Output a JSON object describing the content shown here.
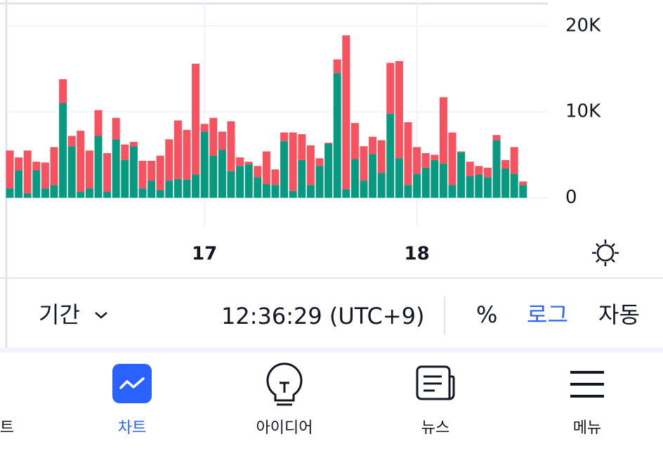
{
  "chart_data": {
    "type": "bar",
    "stacked": true,
    "categories": [
      null,
      null,
      null,
      null,
      null,
      null,
      null,
      null,
      null,
      null,
      null,
      null,
      null,
      null,
      null,
      null,
      null,
      null,
      null,
      null,
      null,
      null,
      "17",
      null,
      null,
      null,
      null,
      null,
      null,
      null,
      null,
      null,
      null,
      null,
      null,
      null,
      null,
      null,
      null,
      null,
      null,
      null,
      null,
      null,
      null,
      null,
      "18",
      null,
      null,
      null,
      null,
      null,
      null,
      null,
      null,
      null,
      null,
      null,
      null
    ],
    "series": [
      {
        "color": "#089981",
        "values": [
          1100,
          3200,
          500,
          3200,
          1100,
          1500,
          11000,
          6000,
          700,
          1100,
          7200,
          700,
          6800,
          4400,
          6000,
          1100,
          2000,
          900,
          2000,
          2200,
          2100,
          2700,
          7700,
          4900,
          5600,
          3100,
          3700,
          3900,
          2400,
          1600,
          1500,
          6600,
          800,
          4400,
          1500,
          3700,
          6300,
          14500,
          1000,
          4500,
          2000,
          5100,
          2900,
          9800,
          4600,
          1500,
          2800,
          3500,
          4400,
          4000,
          1500,
          5300,
          2500,
          2700,
          2400,
          6700,
          3400,
          2800,
          1500
        ]
      },
      {
        "color": "#f7525f",
        "values": [
          4400,
          1500,
          5000,
          1000,
          3000,
          4400,
          2800,
          1200,
          7100,
          4400,
          3000,
          4500,
          2500,
          1800,
          500,
          3200,
          2300,
          4000,
          4800,
          6800,
          5800,
          12900,
          900,
          4400,
          2100,
          5800,
          1000,
          300,
          1300,
          3800,
          1800,
          1000,
          6800,
          3000,
          4600,
          900,
          100,
          1600,
          17900,
          4200,
          4000,
          2000,
          3800,
          5900,
          11300,
          7300,
          3100,
          1700,
          600,
          7700,
          6100,
          100,
          1700,
          1000,
          1100,
          600,
          1000,
          3100,
          400
        ]
      }
    ],
    "ylim": [
      -3300,
      22600
    ],
    "yticks": [
      0,
      {
        "value": 10000,
        "label": "10K"
      },
      {
        "value": 20000,
        "label": "20K"
      }
    ],
    "grid": true
  },
  "toolbar": {
    "period": "기간",
    "time": "12:36:29 (UTC+9)",
    "percent": "%",
    "log": "로그",
    "auto": "자동"
  },
  "nav": {
    "items": [
      "트",
      "차트",
      "아이디어",
      "뉴스",
      "메뉴"
    ]
  }
}
